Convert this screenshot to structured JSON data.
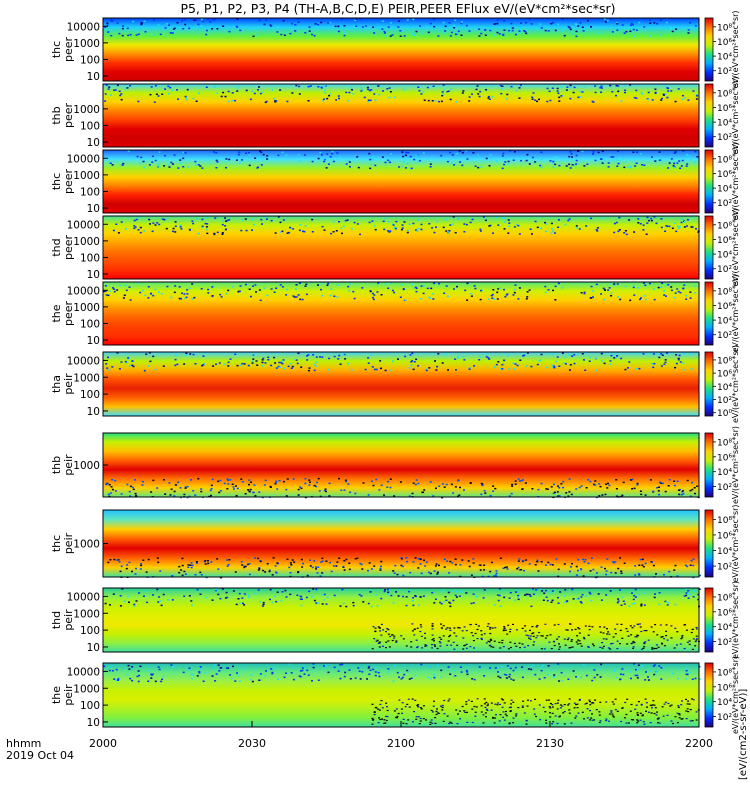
{
  "chart_data": {
    "type": "heatmap",
    "title": "P5, P1, P2, P3, P4 (TH-A,B,C,D,E) PEIR,PEER EFlux eV/(eV*cm²*sec*sr)",
    "date_label": "2019 Oct 04",
    "time_label": "hhmm",
    "x_ticks": [
      "2000",
      "2030",
      "2100",
      "2130",
      "2200"
    ],
    "x_range_minutes": [
      0,
      120
    ],
    "colorbar_label": "[eV/(cm2-s-sr-eV)]",
    "colorbar_label_repeated": "eV/(eV*cm²*sec*sr)",
    "colormap": [
      "#200080",
      "#0030ff",
      "#00b0ff",
      "#20e080",
      "#c8f000",
      "#ffd000",
      "#ff7000",
      "#e00000"
    ],
    "panels": [
      {
        "name": "thc peer",
        "y_label": [
          "thc",
          "peer"
        ],
        "y_ticks": [
          "10",
          "100",
          "1000",
          "10000"
        ],
        "cbar_ticks": [
          "10²",
          "10⁴",
          "10⁶",
          "10⁸"
        ],
        "cbar_max": 9.2
      },
      {
        "name": "thb peer",
        "y_label": [
          "thb",
          "peer"
        ],
        "y_ticks": [
          "10",
          "100",
          "1000"
        ],
        "cbar_ticks": [
          "10²",
          "10⁴",
          "10⁶",
          "10⁸"
        ],
        "cbar_max": 9.2
      },
      {
        "name": "thc peer",
        "y_label": [
          "thc",
          "peer"
        ],
        "y_ticks": [
          "10",
          "100",
          "1000",
          "10000"
        ],
        "cbar_ticks": [
          "10²",
          "10⁴",
          "10⁶",
          "10⁸"
        ],
        "cbar_max": 9.2
      },
      {
        "name": "thd peer",
        "y_label": [
          "thd",
          "peer"
        ],
        "y_ticks": [
          "10",
          "100",
          "1000",
          "10000"
        ],
        "cbar_ticks": [
          "10²",
          "10⁴",
          "10⁶",
          "10⁸"
        ],
        "cbar_max": 9.2
      },
      {
        "name": "the peer",
        "y_label": [
          "the",
          "peer"
        ],
        "y_ticks": [
          "10",
          "100",
          "1000",
          "10000"
        ],
        "cbar_ticks": [
          "10²",
          "10⁴",
          "10⁶",
          "10⁸"
        ],
        "cbar_max": 9.2
      },
      {
        "name": "tha peir",
        "y_label": [
          "tha",
          "peir"
        ],
        "y_ticks": [
          "10",
          "100",
          "1000",
          "10000"
        ],
        "cbar_ticks": [
          "10⁰",
          "10²",
          "10⁴",
          "10⁶",
          "10⁸"
        ],
        "cbar_max": 9.2
      },
      {
        "name": "thb peir",
        "y_label": [
          "thb",
          "peir"
        ],
        "y_ticks": [
          "1000"
        ],
        "cbar_ticks": [
          "10²",
          "10⁴",
          "10⁶",
          "10⁸"
        ],
        "cbar_max": 9.2
      },
      {
        "name": "thc peir",
        "y_label": [
          "thc",
          "peir"
        ],
        "y_ticks": [
          "1000"
        ],
        "cbar_ticks": [
          "10²",
          "10⁴",
          "10⁶",
          "10⁸"
        ],
        "cbar_max": 9.2
      },
      {
        "name": "thd peir",
        "y_label": [
          "thd",
          "peir"
        ],
        "y_ticks": [
          "10",
          "100",
          "1000",
          "10000"
        ],
        "cbar_ticks": [
          "10²",
          "10⁴",
          "10⁶",
          "10⁸"
        ],
        "cbar_max": 9.2
      },
      {
        "name": "the peir",
        "y_label": [
          "the",
          "peir"
        ],
        "y_ticks": [
          "10",
          "100",
          "1000",
          "10000"
        ],
        "cbar_ticks": [
          "10²",
          "10⁴",
          "10⁶",
          "10⁸"
        ],
        "cbar_max": 9.2
      }
    ],
    "grid": false
  }
}
